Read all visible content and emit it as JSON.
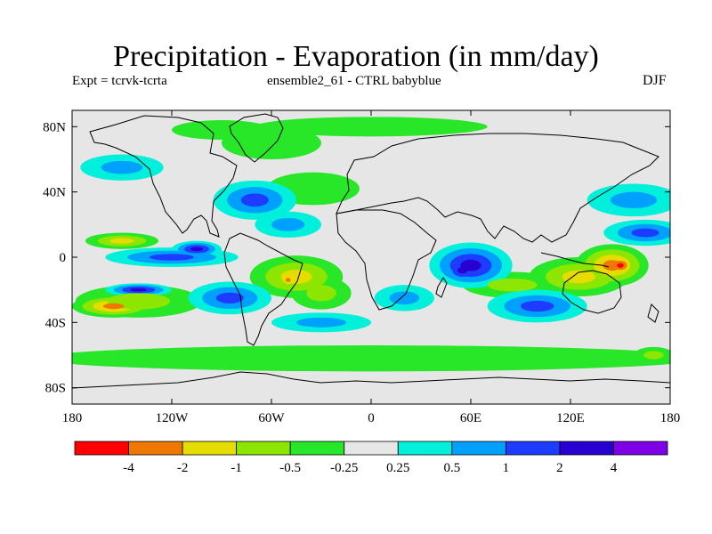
{
  "header": {
    "title": "Precipitation - Evaporation (in mm/day)",
    "expt": "Expt = tcrvk-tcrta",
    "ensemble": "ensemble2_61 - CTRL babyblue",
    "season": "DJF"
  },
  "chart_data": {
    "type": "heatmap",
    "title": "Precipitation - Evaporation (in mm/day)",
    "projection": "cylindrical equidistant (lon/lat)",
    "background_color": "#e6e6e6",
    "xlim": [
      -180,
      180
    ],
    "ylim": [
      -90,
      90
    ],
    "x_ticks": [
      {
        "value": -180,
        "label": "180"
      },
      {
        "value": -120,
        "label": "120W"
      },
      {
        "value": -60,
        "label": "60W"
      },
      {
        "value": 0,
        "label": "0"
      },
      {
        "value": 60,
        "label": "60E"
      },
      {
        "value": 120,
        "label": "120E"
      },
      {
        "value": 180,
        "label": "180"
      }
    ],
    "y_ticks": [
      {
        "value": 80,
        "label": "80N"
      },
      {
        "value": 40,
        "label": "40N"
      },
      {
        "value": 0,
        "label": "0"
      },
      {
        "value": -40,
        "label": "40S"
      },
      {
        "value": -80,
        "label": "80S"
      }
    ],
    "colorbar": {
      "colors": [
        "#ff0000",
        "#f07800",
        "#e6dc00",
        "#8ce600",
        "#28e628",
        "#e6e6e6",
        "#00f0dc",
        "#00a0ff",
        "#1e3cff",
        "#2800d2",
        "#7d00e6"
      ],
      "labels": [
        "-4",
        "-2",
        "-1",
        "-0.5",
        "-0.25",
        "0.25",
        "0.5",
        "1",
        "2",
        "4"
      ]
    },
    "levels": [
      -4,
      -2,
      -1,
      -0.5,
      -0.25,
      0.25,
      0.5,
      1,
      2,
      4
    ],
    "features": [
      {
        "lon": 145,
        "lat": -5,
        "r_lon": 22,
        "r_lat": 13,
        "value": -3.5
      },
      {
        "lon": 150,
        "lat": -5,
        "r_lon": 10,
        "r_lat": 7,
        "value": -5
      },
      {
        "lon": 125,
        "lat": -12,
        "r_lon": 30,
        "r_lat": 12,
        "value": -1.2
      },
      {
        "lon": 85,
        "lat": -17,
        "r_lon": 30,
        "r_lat": 8,
        "value": -0.8
      },
      {
        "lon": -155,
        "lat": -30,
        "r_lon": 25,
        "r_lat": 7,
        "value": -2.5
      },
      {
        "lon": -140,
        "lat": -27,
        "r_lon": 38,
        "r_lat": 10,
        "value": -0.8
      },
      {
        "lon": -150,
        "lat": 10,
        "r_lon": 22,
        "r_lat": 5,
        "value": -1.5
      },
      {
        "lon": -45,
        "lat": -12,
        "r_lon": 28,
        "r_lat": 13,
        "value": -1.2
      },
      {
        "lon": -50,
        "lat": -14,
        "r_lon": 6,
        "r_lat": 5,
        "value": -2.5
      },
      {
        "lon": -30,
        "lat": -22,
        "r_lon": 18,
        "r_lat": 10,
        "value": -0.5
      },
      {
        "lon": -35,
        "lat": 42,
        "r_lon": 28,
        "r_lat": 10,
        "value": -0.4
      },
      {
        "lon": -60,
        "lat": 70,
        "r_lon": 30,
        "r_lat": 10,
        "value": -0.4
      },
      {
        "lon": -90,
        "lat": 78,
        "r_lon": 30,
        "r_lat": 6,
        "value": -0.4
      },
      {
        "lon": 0,
        "lat": 80,
        "r_lon": 70,
        "r_lat": 6,
        "value": -0.4
      },
      {
        "lon": 0,
        "lat": -62,
        "r_lon": 200,
        "r_lat": 8,
        "value": -0.4
      },
      {
        "lon": 170,
        "lat": -60,
        "r_lon": 12,
        "r_lat": 5,
        "value": -0.8
      },
      {
        "lon": -120,
        "lat": 0,
        "r_lon": 40,
        "r_lat": 6,
        "value": 1.2
      },
      {
        "lon": -105,
        "lat": 5,
        "r_lon": 15,
        "r_lat": 5,
        "value": 2.2
      },
      {
        "lon": -85,
        "lat": -25,
        "r_lon": 25,
        "r_lat": 10,
        "value": 1.5
      },
      {
        "lon": -140,
        "lat": -20,
        "r_lon": 20,
        "r_lat": 4,
        "value": 2.2
      },
      {
        "lon": 60,
        "lat": -5,
        "r_lon": 25,
        "r_lat": 14,
        "value": 2.5
      },
      {
        "lon": 55,
        "lat": -8,
        "r_lon": 12,
        "r_lat": 8,
        "value": 3.0
      },
      {
        "lon": 100,
        "lat": -30,
        "r_lon": 30,
        "r_lat": 10,
        "value": 1.2
      },
      {
        "lon": 165,
        "lat": 15,
        "r_lon": 25,
        "r_lat": 8,
        "value": 1.2
      },
      {
        "lon": 158,
        "lat": 35,
        "r_lon": 28,
        "r_lat": 10,
        "value": 0.7
      },
      {
        "lon": -70,
        "lat": 35,
        "r_lon": 25,
        "r_lat": 12,
        "value": 1.0
      },
      {
        "lon": -50,
        "lat": 20,
        "r_lon": 20,
        "r_lat": 8,
        "value": 0.6
      },
      {
        "lon": -150,
        "lat": 55,
        "r_lon": 25,
        "r_lat": 8,
        "value": 0.6
      },
      {
        "lon": -30,
        "lat": -40,
        "r_lon": 30,
        "r_lat": 6,
        "value": 0.6
      },
      {
        "lon": 20,
        "lat": -25,
        "r_lon": 18,
        "r_lat": 8,
        "value": 0.6
      }
    ]
  }
}
